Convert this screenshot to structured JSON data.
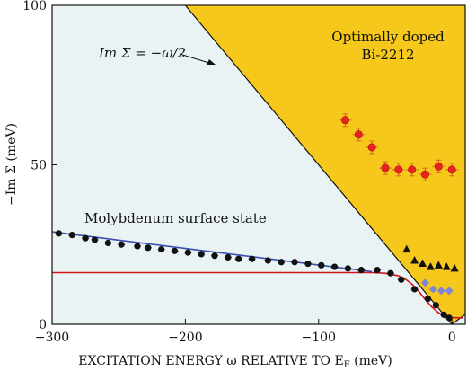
{
  "chart_data": {
    "type": "scatter",
    "title": "",
    "xlabel": "EXCITATION ENERGY ω RELATIVE TO E",
    "xlabel_sub": "F",
    "xlabel_unit": " (meV)",
    "ylabel": "−Im Σ (meV)",
    "xlim": [
      -300,
      10
    ],
    "ylim": [
      0,
      100
    ],
    "x_ticks": [
      -300,
      -200,
      -100,
      0
    ],
    "x_tick_labels": [
      "−300",
      "−200",
      "−100",
      "0"
    ],
    "y_ticks": [
      0,
      50,
      100
    ],
    "y_tick_labels": [
      "0",
      "50",
      "100"
    ],
    "grid": false,
    "colors": {
      "bi2212_region": "#f7c81c",
      "molybdenum_region": "#eaf3f3",
      "red_points": "#e8231f",
      "fit_line": "#3a4fb5",
      "model_curve": "#d4161b",
      "black_points": "#111111",
      "blue_diamonds": "#7d86d6"
    },
    "annotations": {
      "bi2212": [
        "Optimally doped",
        "Bi-2212"
      ],
      "boundary": "Im Σ = −ω/2",
      "molybdenum": "Molybdenum surface state"
    },
    "boundary_line": {
      "x": [
        -195,
        0
      ],
      "y": [
        97.5,
        0
      ]
    },
    "series": [
      {
        "marker": "circle-black",
        "x": [
          -295,
          -285,
          -275,
          -268,
          -258,
          -248,
          -236,
          -228,
          -218,
          -208,
          -198,
          -188,
          -178,
          -168,
          -160,
          -150,
          -138,
          -128,
          -118,
          -108,
          -98,
          -88,
          -78,
          -68,
          -56,
          -46,
          -38,
          -28,
          -18,
          -12,
          -6,
          -2
        ],
        "y": [
          28.5,
          28,
          27,
          26.5,
          25.5,
          25,
          24.5,
          24,
          23.5,
          23,
          22.5,
          22,
          21.5,
          21,
          20.5,
          20.5,
          20,
          19.5,
          19.5,
          19,
          18.5,
          18,
          17.5,
          17,
          17,
          16,
          14,
          11,
          8,
          6,
          3,
          2
        ]
      },
      {
        "marker": "circle-red",
        "x": [
          -80,
          -70,
          -60,
          -50,
          -40,
          -30,
          -20,
          -10,
          0
        ],
        "y": [
          64,
          59.5,
          55.5,
          49,
          48.5,
          48.5,
          47,
          49.5,
          48.5
        ]
      },
      {
        "marker": "triangle-black",
        "x": [
          -34,
          -28,
          -22,
          -16,
          -10,
          -4,
          2
        ],
        "y": [
          23.5,
          20,
          19,
          18,
          18.5,
          18,
          17.5
        ]
      },
      {
        "marker": "diamond-blue",
        "x": [
          -20,
          -14,
          -8,
          -2
        ],
        "y": [
          13,
          11,
          10.5,
          10.5
        ]
      },
      {
        "marker": "fit-line",
        "x": [
          -300,
          -60
        ],
        "y": [
          29,
          16.5
        ]
      },
      {
        "marker": "model-curve",
        "x": [
          -300,
          -60,
          -50,
          -40,
          -35,
          -30,
          -25,
          -20,
          -15,
          -10,
          -5,
          0,
          8
        ],
        "y": [
          16.2,
          16.2,
          16,
          15.2,
          14.2,
          12.6,
          10.4,
          7.8,
          5.4,
          3.6,
          2.5,
          2.1,
          2.0
        ]
      }
    ]
  }
}
